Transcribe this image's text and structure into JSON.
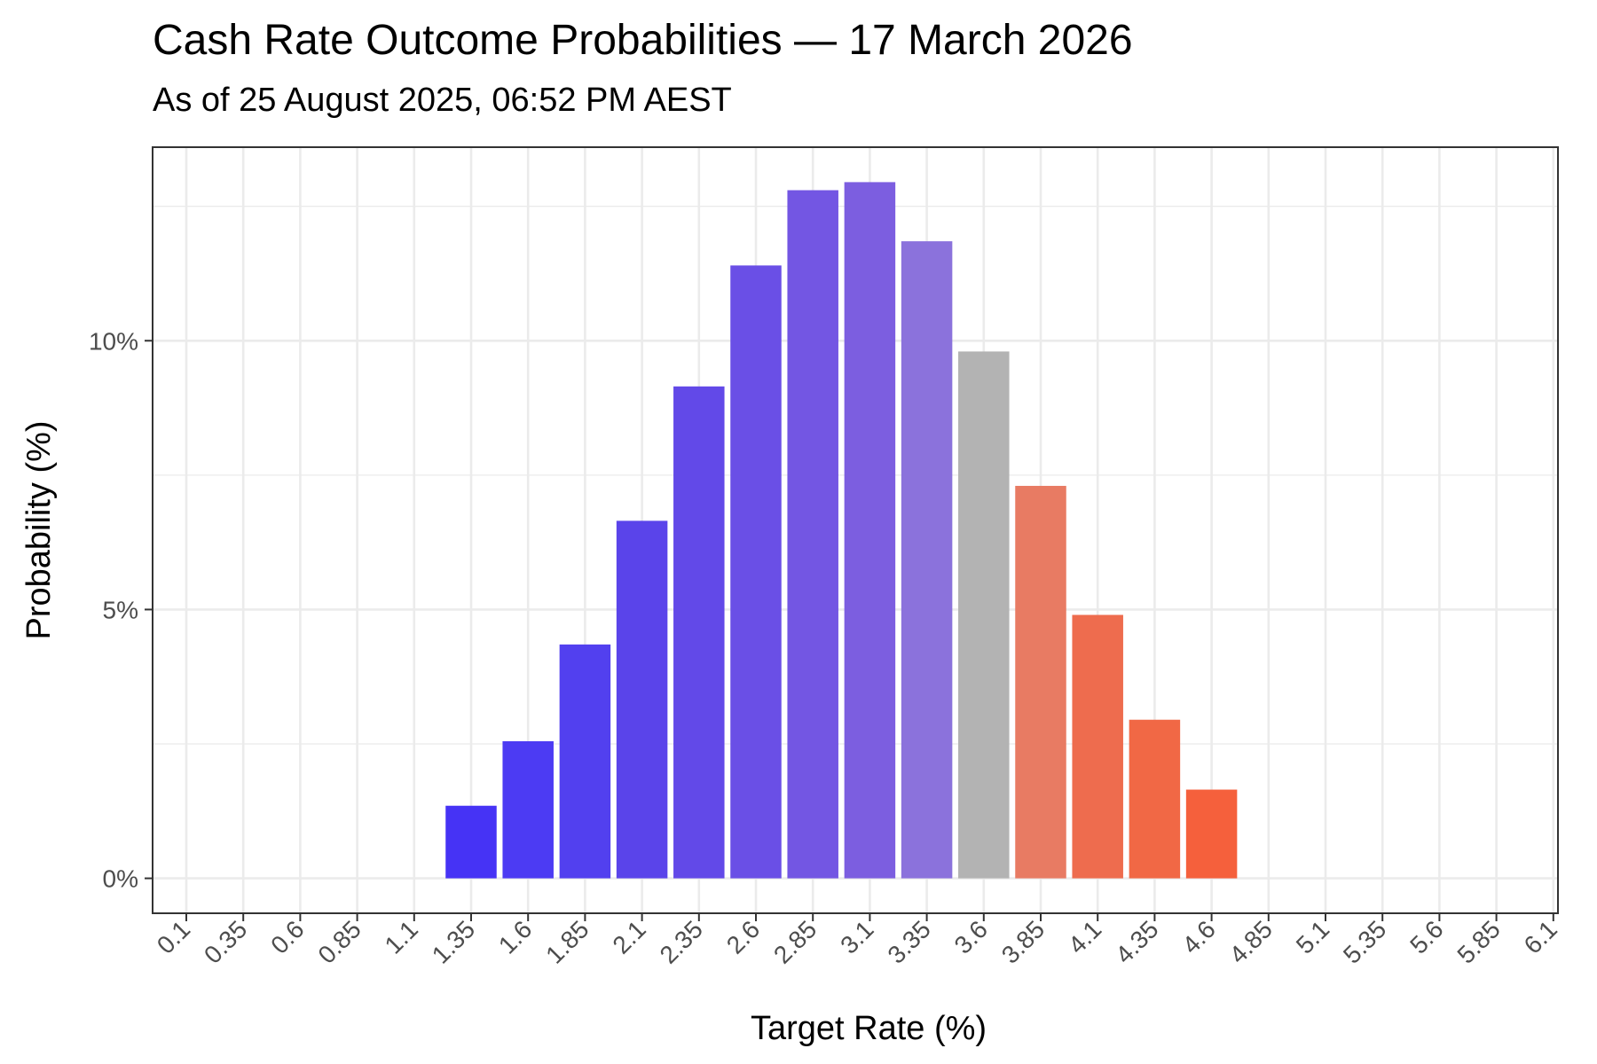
{
  "chart_data": {
    "type": "bar",
    "title": "Cash Rate Outcome Probabilities — 17 March 2026",
    "subtitle": "As of 25 August 2025, 06:52 PM AEST",
    "xlabel": "Target Rate (%)",
    "ylabel": "Probability (%)",
    "categories": [
      "0.1",
      "0.35",
      "0.6",
      "0.85",
      "1.1",
      "1.35",
      "1.6",
      "1.85",
      "2.1",
      "2.35",
      "2.6",
      "2.85",
      "3.1",
      "3.35",
      "3.6",
      "3.85",
      "4.1",
      "4.35",
      "4.6",
      "4.85",
      "5.1",
      "5.35",
      "5.6",
      "5.85",
      "6.1"
    ],
    "values": [
      0,
      0,
      0,
      0,
      0,
      1.35,
      2.55,
      4.35,
      6.65,
      9.15,
      11.4,
      12.8,
      12.95,
      11.85,
      9.8,
      7.3,
      4.9,
      2.95,
      1.65,
      0,
      0,
      0,
      0,
      0,
      0
    ],
    "colors": [
      "#4633f5",
      "#4633f5",
      "#4633f5",
      "#4633f5",
      "#4633f5",
      "#4633f5",
      "#4c3bf3",
      "#5240ef",
      "#5a44ea",
      "#6249e8",
      "#6a4fe6",
      "#7356e3",
      "#7c5ee0",
      "#8b72dc",
      "#b3b3b3",
      "#e87b63",
      "#ee6c4e",
      "#f16845",
      "#f5603c",
      "#f5603c",
      "#f5603c",
      "#f5603c",
      "#f5603c",
      "#f5603c",
      "#f5603c"
    ],
    "y_ticks": [
      0,
      5,
      10
    ],
    "y_tick_labels": [
      "0%",
      "5%",
      "10%"
    ],
    "ylim": [
      -0.65,
      13.6
    ],
    "grid": true,
    "legend": "none"
  }
}
